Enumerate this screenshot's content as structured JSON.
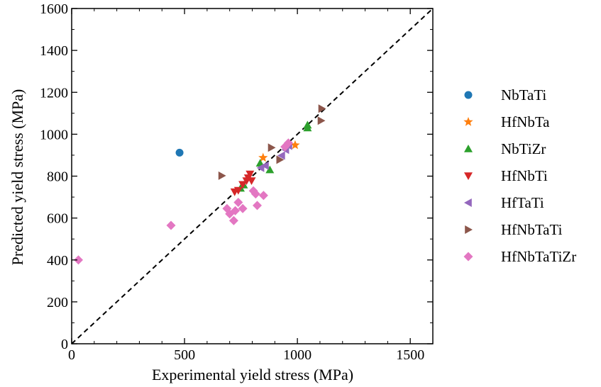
{
  "chart_data": {
    "type": "scatter",
    "xlabel": "Experimental yield stress (MPa)",
    "ylabel": "Predicted yield stress (MPa)",
    "xlim": [
      0,
      1600
    ],
    "ylim": [
      0,
      1600
    ],
    "x_ticks": [
      "0",
      "500",
      "1000",
      "1500"
    ],
    "y_ticks": [
      "0",
      "200",
      "400",
      "600",
      "800",
      "1000",
      "1200",
      "1400",
      "1600"
    ],
    "reference_line": "y = x (black dashed)",
    "legend_placement": "right, outside plot",
    "series": [
      {
        "name": "NbTaTi",
        "marker": "circle",
        "color": "#1f77b4",
        "points": [
          [
            478,
            912
          ]
        ]
      },
      {
        "name": "HfNbTa",
        "marker": "star",
        "color": "#ff7f0e",
        "points": [
          [
            848,
            888
          ],
          [
            990,
            948
          ]
        ]
      },
      {
        "name": "NbTiZr",
        "marker": "triangle-up",
        "color": "#2ca02c",
        "points": [
          [
            835,
            862
          ],
          [
            878,
            830
          ],
          [
            762,
            758
          ],
          [
            748,
            742
          ],
          [
            1045,
            1030
          ],
          [
            1045,
            1044
          ]
        ]
      },
      {
        "name": "HfNbTi",
        "marker": "triangle-down",
        "color": "#d62728",
        "points": [
          [
            722,
            725
          ],
          [
            738,
            732
          ],
          [
            758,
            760
          ],
          [
            775,
            778
          ],
          [
            790,
            810
          ],
          [
            782,
            792
          ],
          [
            797,
            778
          ]
        ]
      },
      {
        "name": "HfTaTi",
        "marker": "triangle-left",
        "color": "#9467bd",
        "points": [
          [
            838,
            840
          ],
          [
            858,
            850
          ],
          [
            930,
            898
          ],
          [
            948,
            926
          ],
          [
            962,
            945
          ]
        ]
      },
      {
        "name": "HfNbTaTi",
        "marker": "triangle-right",
        "color": "#8c564b",
        "points": [
          [
            665,
            802
          ],
          [
            885,
            936
          ],
          [
            922,
            878
          ],
          [
            1108,
            1122
          ],
          [
            1105,
            1065
          ]
        ]
      },
      {
        "name": "HfNbTaTiZr",
        "marker": "diamond",
        "color": "#e377c2",
        "points": [
          [
            30,
            400
          ],
          [
            440,
            565
          ],
          [
            688,
            645
          ],
          [
            700,
            620
          ],
          [
            718,
            588
          ],
          [
            725,
            635
          ],
          [
            738,
            675
          ],
          [
            758,
            645
          ],
          [
            805,
            730
          ],
          [
            815,
            715
          ],
          [
            822,
            660
          ],
          [
            850,
            708
          ],
          [
            960,
            958
          ],
          [
            945,
            940
          ]
        ]
      }
    ]
  }
}
